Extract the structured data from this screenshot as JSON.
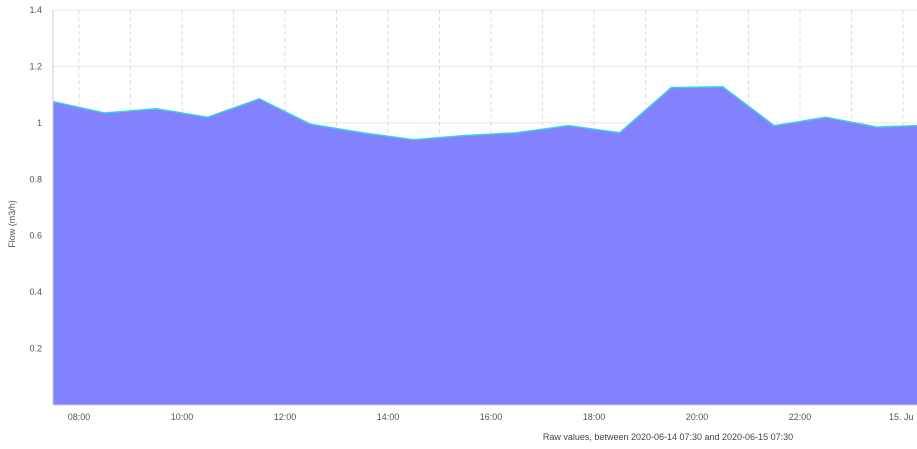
{
  "chart_data": {
    "type": "area",
    "title": "",
    "xlabel": "Raw values, between 2020-06-14 07:30 and 2020-06-15 07:30",
    "ylabel": "Flow (m3/h)",
    "ylim": [
      0,
      1.4
    ],
    "y_ticks": [
      "1.4",
      "1.2",
      "1",
      "0.8",
      "0.6",
      "0.4",
      "0.2"
    ],
    "x_ticks": [
      "08:00",
      "10:00",
      "12:00",
      "14:00",
      "16:00",
      "18:00",
      "20:00",
      "22:00",
      "15. Ju"
    ],
    "grid": true,
    "colors": {
      "fill": "#7b7bff",
      "line": "#3ecfdf",
      "grid": "#e8e8e8"
    },
    "series": [
      {
        "x": [
          "2020-06-14 07:30",
          "2020-06-14 08:30",
          "2020-06-14 09:30",
          "2020-06-14 10:30",
          "2020-06-14 11:30",
          "2020-06-14 12:30",
          "2020-06-14 13:30",
          "2020-06-14 14:30",
          "2020-06-14 15:30",
          "2020-06-14 16:30",
          "2020-06-14 17:30",
          "2020-06-14 18:30",
          "2020-06-14 19:30",
          "2020-06-14 20:30",
          "2020-06-14 21:30",
          "2020-06-14 22:30",
          "2020-06-14 23:30",
          "2020-06-15 00:20"
        ],
        "values": [
          1.075,
          1.035,
          1.05,
          1.02,
          1.085,
          0.995,
          0.965,
          0.94,
          0.955,
          0.965,
          0.99,
          0.965,
          1.125,
          1.128,
          0.99,
          1.02,
          0.985,
          0.99
        ]
      }
    ]
  }
}
